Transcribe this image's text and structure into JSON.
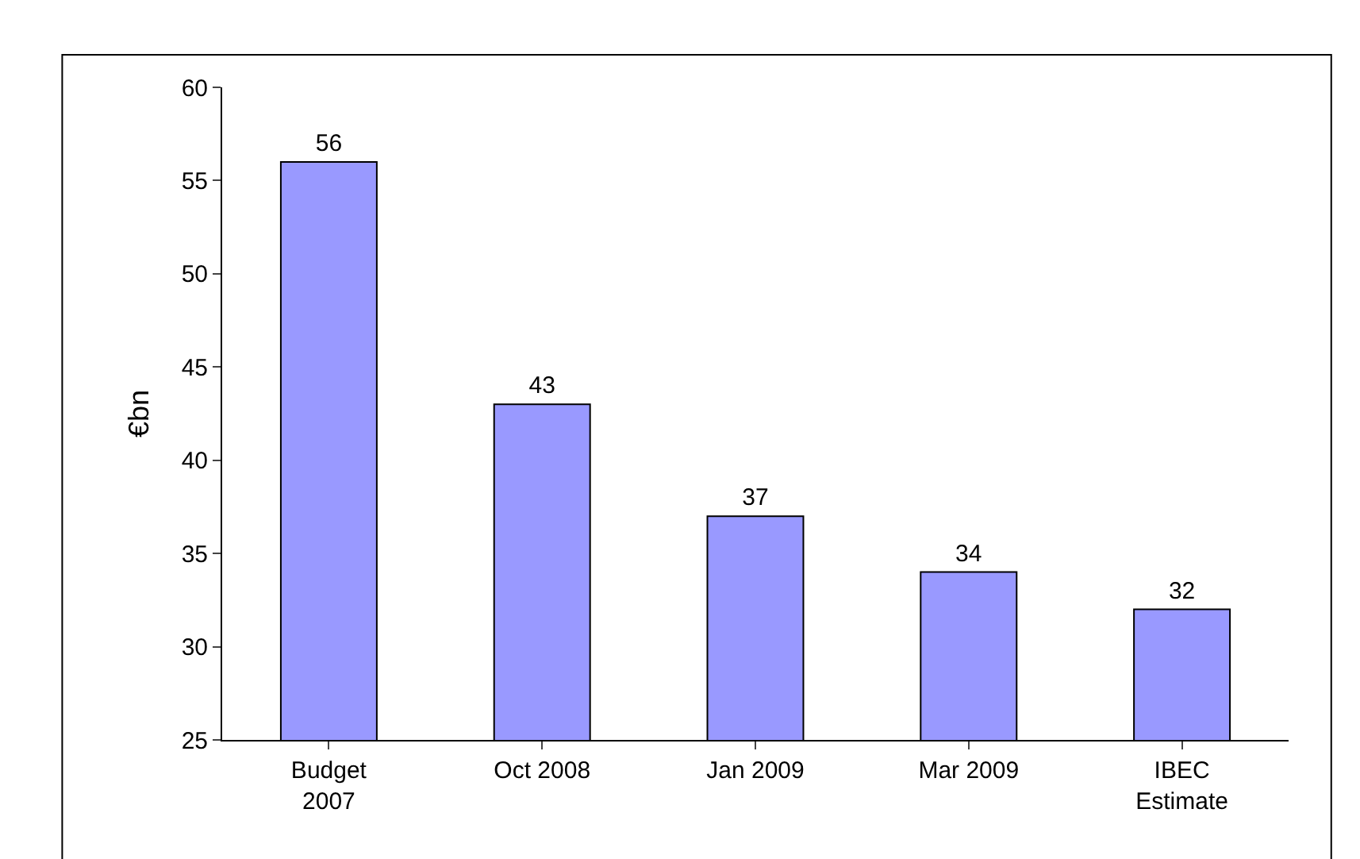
{
  "chart_data": {
    "type": "bar",
    "ylabel": "€bn",
    "categories": [
      "Budget\n2007",
      "Oct 2008",
      "Jan 2009",
      "Mar 2009",
      "IBEC\nEstimate"
    ],
    "values": [
      56,
      43,
      37,
      34,
      32
    ],
    "color": "#9999ff",
    "ylim": [
      25,
      60
    ],
    "yticks": [
      25,
      30,
      35,
      40,
      45,
      50,
      55,
      60
    ],
    "data_labels": true
  }
}
